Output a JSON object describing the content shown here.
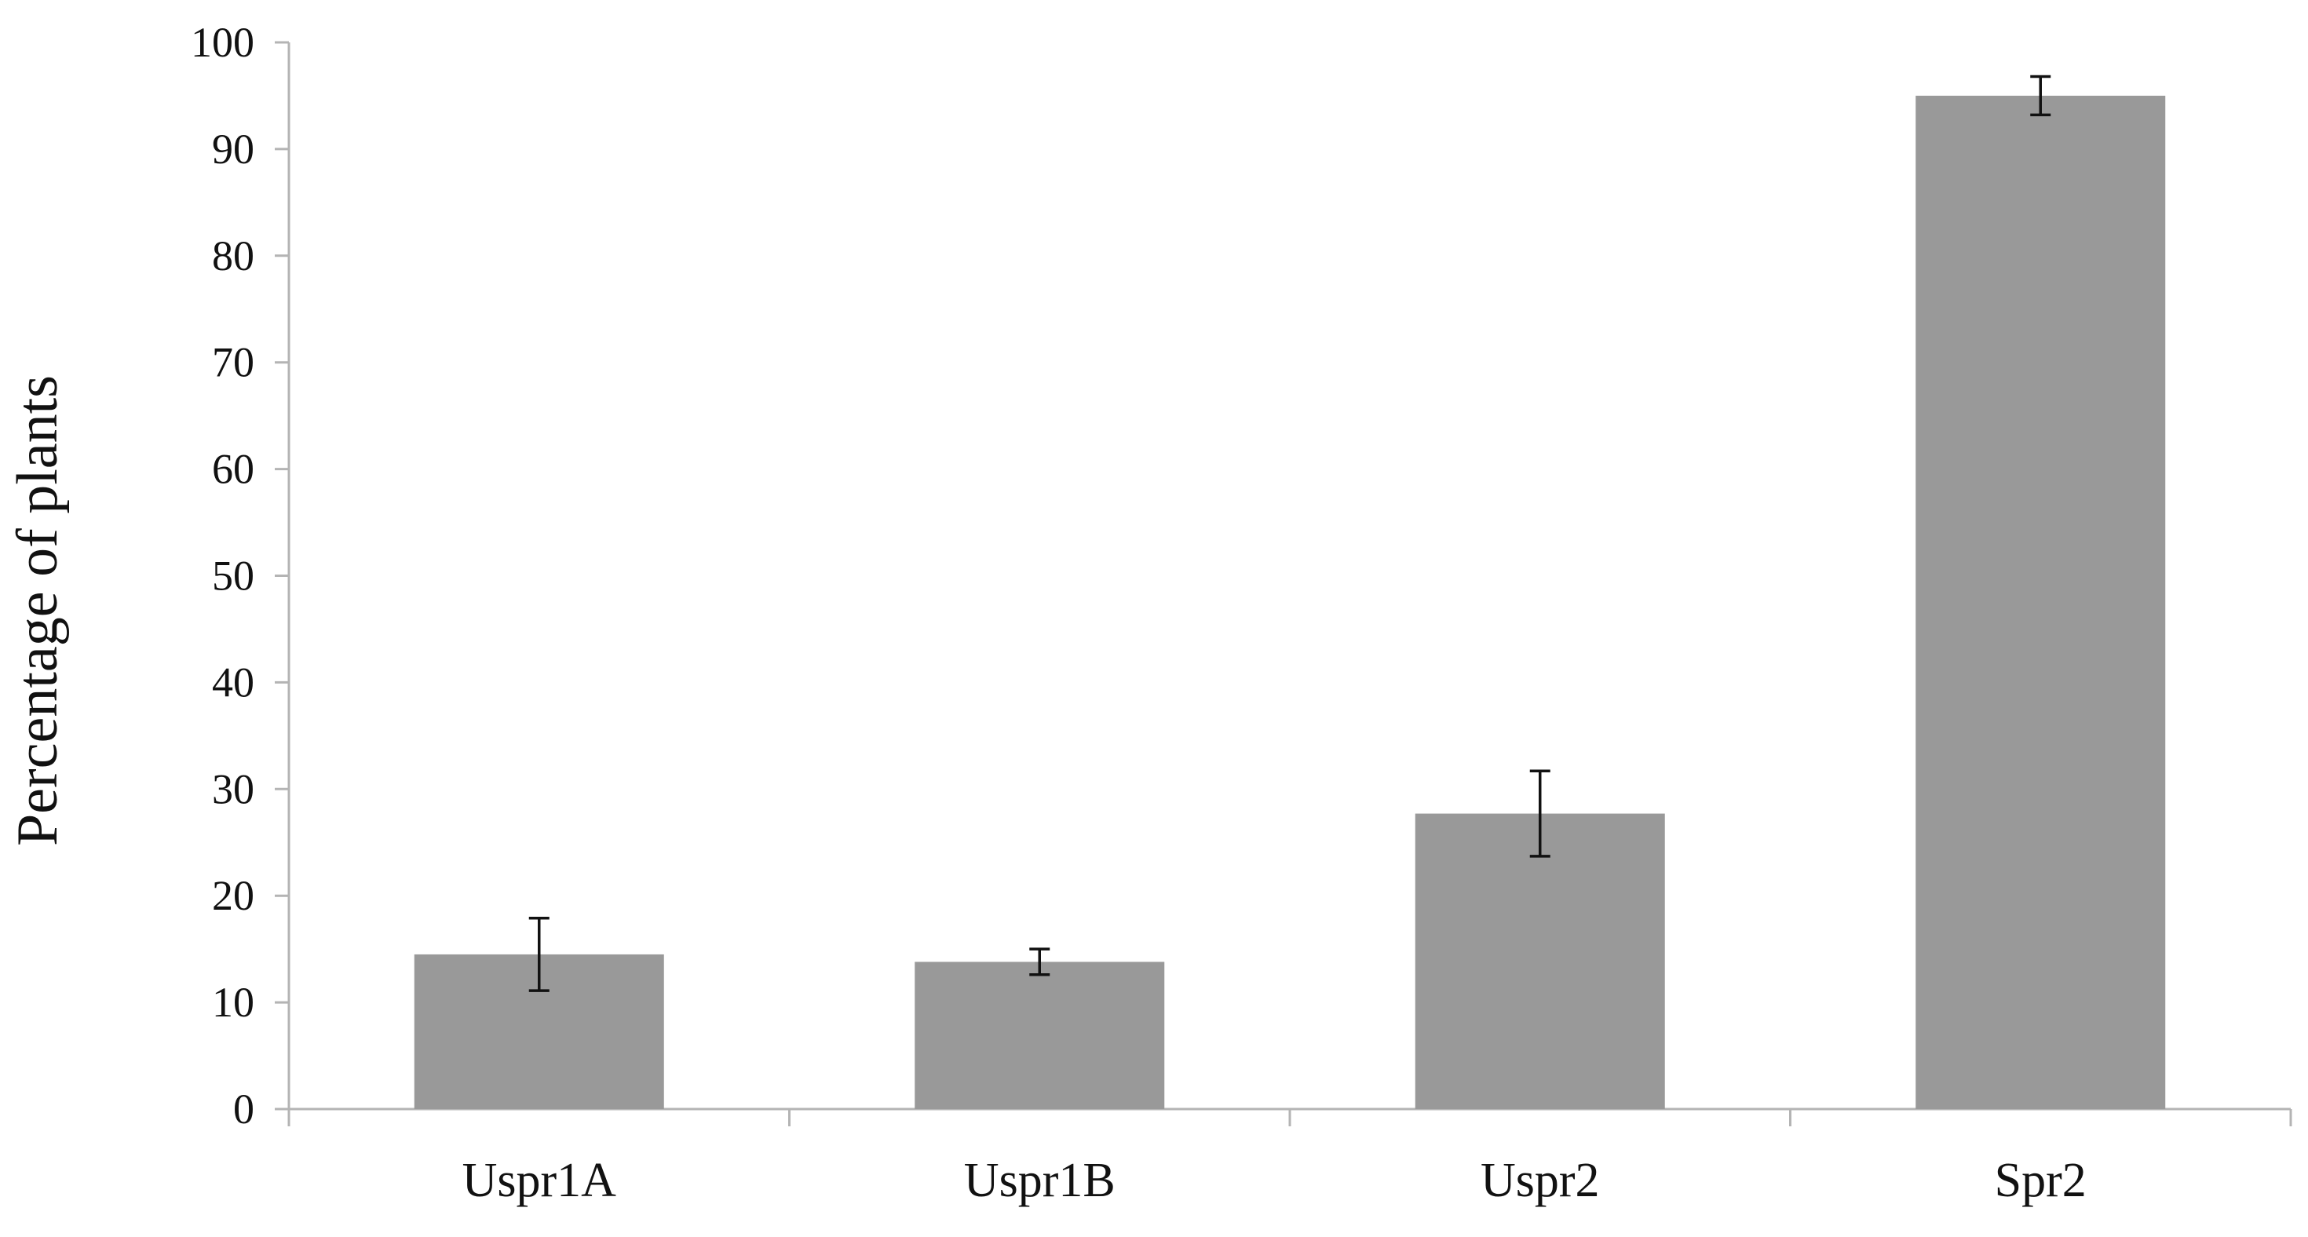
{
  "chart_data": {
    "type": "bar",
    "title": "",
    "xlabel": "",
    "ylabel": "Percentage of plants",
    "categories": [
      "Uspr1A",
      "Uspr1B",
      "Uspr2",
      "Spr2"
    ],
    "series": [
      {
        "values": [
          14.5,
          13.8,
          27.7,
          95.0
        ],
        "errors": [
          3.4,
          1.2,
          4.0,
          1.8
        ]
      }
    ],
    "ylim": [
      0,
      100
    ],
    "yticks": [
      0,
      10,
      20,
      30,
      40,
      50,
      60,
      70,
      80,
      90,
      100
    ],
    "grid": false,
    "legend": "none",
    "colors": {
      "bar": "#999999",
      "axis": "#b4b4b4",
      "error": "#111111",
      "text": "#111111"
    }
  }
}
